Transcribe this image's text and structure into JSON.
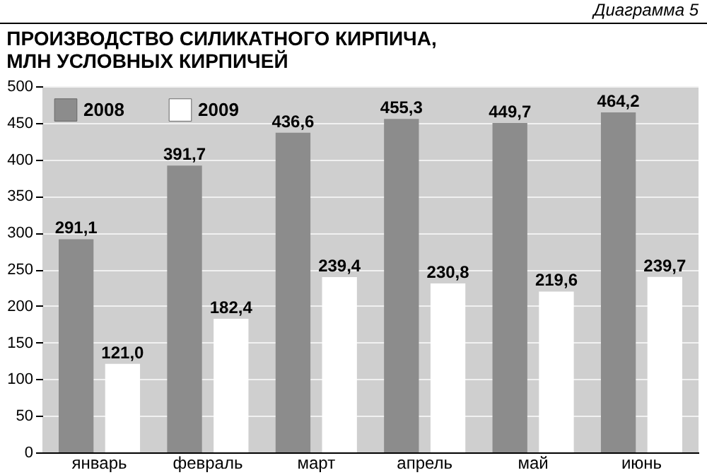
{
  "chart_data": {
    "type": "bar",
    "title": "ПРОИЗВОДСТВО СИЛИКАТНОГО КИРПИЧА,\nМЛН УСЛОВНЫХ КИРПИЧЕЙ",
    "annotations": [
      "Диаграмма 5"
    ],
    "categories": [
      "январь",
      "февраль",
      "март",
      "апрель",
      "май",
      "июнь"
    ],
    "series": [
      {
        "name": "2008",
        "color": "#8c8c8c",
        "values": [
          291.1,
          391.7,
          436.6,
          455.3,
          449.7,
          464.2
        ],
        "value_labels": [
          "291,1",
          "391,7",
          "436,6",
          "455,3",
          "449,7",
          "464,2"
        ]
      },
      {
        "name": "2009",
        "color": "#ffffff",
        "values": [
          121.0,
          182.4,
          239.4,
          230.8,
          219.6,
          239.7
        ],
        "value_labels": [
          "121,0",
          "182,4",
          "239,4",
          "230,8",
          "219,6",
          "239,7"
        ]
      }
    ],
    "ylim": [
      0,
      500
    ],
    "yticks": [
      0,
      50,
      100,
      150,
      200,
      250,
      300,
      350,
      400,
      450,
      500
    ],
    "grid": "y",
    "legend": "top left"
  }
}
